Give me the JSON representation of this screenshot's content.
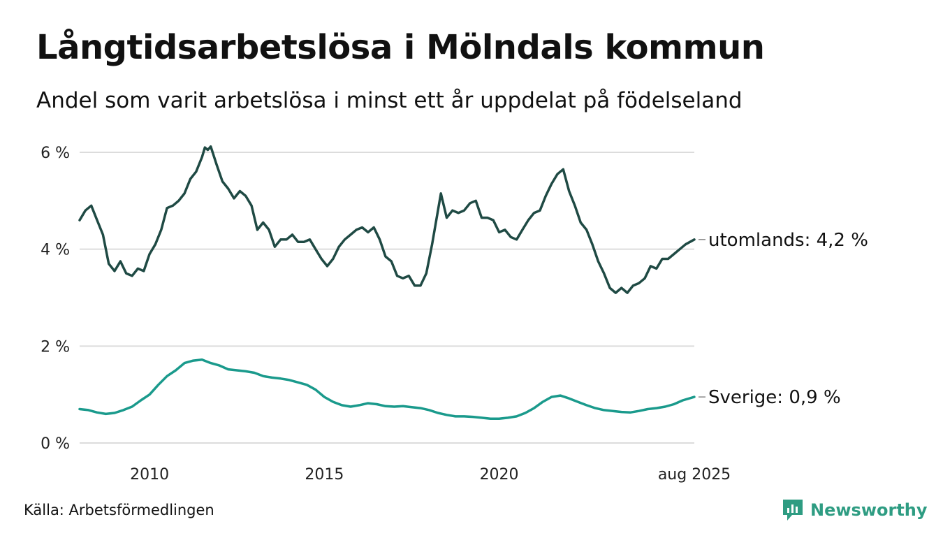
{
  "header": {
    "title": "Långtidsarbetslösa i Mölndals kommun",
    "subtitle": "Andel som varit arbetslösa i minst ett år uppdelat på födelseland"
  },
  "footer": {
    "source": "Källa: Arbetsförmedlingen",
    "brand": "Newsworthy",
    "brand_icon": "newsworthy-logo-icon"
  },
  "colors": {
    "utomlands": "#1f4a44",
    "sverige": "#1a9a8c",
    "grid": "#dcdcdc",
    "brand": "#2e9c82"
  },
  "chart_data": {
    "type": "line",
    "title": "Långtidsarbetslösa i Mölndals kommun",
    "subtitle": "Andel som varit arbetslösa i minst ett år uppdelat på födelseland",
    "xlabel": "",
    "ylabel": "",
    "xlim": [
      "2008-01",
      "2025-08"
    ],
    "ylim": [
      0,
      6
    ],
    "y_ticks": [
      {
        "value": 0,
        "label": "0 %"
      },
      {
        "value": 2,
        "label": "2 %"
      },
      {
        "value": 4,
        "label": "4 %"
      },
      {
        "value": 6,
        "label": "6 %"
      }
    ],
    "x_ticks": [
      {
        "value": "2010-01",
        "label": "2010"
      },
      {
        "value": "2015-01",
        "label": "2015"
      },
      {
        "value": "2020-01",
        "label": "2020"
      },
      {
        "value": "2025-08",
        "label": "aug 2025"
      }
    ],
    "grid": true,
    "legend": "direct labels at line ends",
    "series": [
      {
        "name": "utomlands",
        "end_label": "utomlands: 4,2 %",
        "points": [
          [
            "2008-01",
            4.6
          ],
          [
            "2008-03",
            4.8
          ],
          [
            "2008-05",
            4.9
          ],
          [
            "2008-07",
            4.6
          ],
          [
            "2008-09",
            4.3
          ],
          [
            "2008-11",
            3.7
          ],
          [
            "2009-01",
            3.55
          ],
          [
            "2009-03",
            3.75
          ],
          [
            "2009-05",
            3.5
          ],
          [
            "2009-07",
            3.45
          ],
          [
            "2009-09",
            3.6
          ],
          [
            "2009-11",
            3.55
          ],
          [
            "2010-01",
            3.9
          ],
          [
            "2010-03",
            4.1
          ],
          [
            "2010-05",
            4.4
          ],
          [
            "2010-07",
            4.85
          ],
          [
            "2010-09",
            4.9
          ],
          [
            "2010-11",
            5.0
          ],
          [
            "2011-01",
            5.15
          ],
          [
            "2011-03",
            5.45
          ],
          [
            "2011-05",
            5.6
          ],
          [
            "2011-07",
            5.9
          ],
          [
            "2011-08",
            6.1
          ],
          [
            "2011-09",
            6.05
          ],
          [
            "2011-10",
            6.12
          ],
          [
            "2011-12",
            5.75
          ],
          [
            "2012-02",
            5.4
          ],
          [
            "2012-04",
            5.25
          ],
          [
            "2012-06",
            5.05
          ],
          [
            "2012-08",
            5.2
          ],
          [
            "2012-10",
            5.1
          ],
          [
            "2012-12",
            4.9
          ],
          [
            "2013-02",
            4.4
          ],
          [
            "2013-04",
            4.55
          ],
          [
            "2013-06",
            4.4
          ],
          [
            "2013-08",
            4.05
          ],
          [
            "2013-10",
            4.2
          ],
          [
            "2013-12",
            4.2
          ],
          [
            "2014-02",
            4.3
          ],
          [
            "2014-04",
            4.15
          ],
          [
            "2014-06",
            4.15
          ],
          [
            "2014-08",
            4.2
          ],
          [
            "2014-10",
            4.0
          ],
          [
            "2014-12",
            3.8
          ],
          [
            "2015-02",
            3.65
          ],
          [
            "2015-04",
            3.8
          ],
          [
            "2015-06",
            4.05
          ],
          [
            "2015-08",
            4.2
          ],
          [
            "2015-10",
            4.3
          ],
          [
            "2015-12",
            4.4
          ],
          [
            "2016-02",
            4.45
          ],
          [
            "2016-04",
            4.35
          ],
          [
            "2016-06",
            4.45
          ],
          [
            "2016-08",
            4.2
          ],
          [
            "2016-10",
            3.85
          ],
          [
            "2016-12",
            3.75
          ],
          [
            "2017-02",
            3.45
          ],
          [
            "2017-04",
            3.4
          ],
          [
            "2017-06",
            3.45
          ],
          [
            "2017-08",
            3.25
          ],
          [
            "2017-10",
            3.25
          ],
          [
            "2017-12",
            3.5
          ],
          [
            "2018-02",
            4.1
          ],
          [
            "2018-04",
            4.8
          ],
          [
            "2018-05",
            5.15
          ],
          [
            "2018-07",
            4.65
          ],
          [
            "2018-09",
            4.8
          ],
          [
            "2018-11",
            4.75
          ],
          [
            "2019-01",
            4.8
          ],
          [
            "2019-03",
            4.95
          ],
          [
            "2019-05",
            5.0
          ],
          [
            "2019-07",
            4.65
          ],
          [
            "2019-09",
            4.65
          ],
          [
            "2019-11",
            4.6
          ],
          [
            "2020-01",
            4.35
          ],
          [
            "2020-03",
            4.4
          ],
          [
            "2020-05",
            4.25
          ],
          [
            "2020-07",
            4.2
          ],
          [
            "2020-09",
            4.4
          ],
          [
            "2020-11",
            4.6
          ],
          [
            "2021-01",
            4.75
          ],
          [
            "2021-03",
            4.8
          ],
          [
            "2021-05",
            5.1
          ],
          [
            "2021-07",
            5.35
          ],
          [
            "2021-09",
            5.55
          ],
          [
            "2021-11",
            5.65
          ],
          [
            "2022-01",
            5.2
          ],
          [
            "2022-03",
            4.9
          ],
          [
            "2022-05",
            4.55
          ],
          [
            "2022-07",
            4.4
          ],
          [
            "2022-09",
            4.1
          ],
          [
            "2022-11",
            3.75
          ],
          [
            "2023-01",
            3.5
          ],
          [
            "2023-03",
            3.2
          ],
          [
            "2023-05",
            3.1
          ],
          [
            "2023-07",
            3.2
          ],
          [
            "2023-09",
            3.1
          ],
          [
            "2023-11",
            3.25
          ],
          [
            "2024-01",
            3.3
          ],
          [
            "2024-03",
            3.4
          ],
          [
            "2024-05",
            3.65
          ],
          [
            "2024-07",
            3.6
          ],
          [
            "2024-09",
            3.8
          ],
          [
            "2024-11",
            3.8
          ],
          [
            "2025-01",
            3.9
          ],
          [
            "2025-03",
            4.0
          ],
          [
            "2025-05",
            4.1
          ],
          [
            "2025-08",
            4.2
          ]
        ]
      },
      {
        "name": "Sverige",
        "end_label": "Sverige: 0,9 %",
        "points": [
          [
            "2008-01",
            0.7
          ],
          [
            "2008-04",
            0.68
          ],
          [
            "2008-07",
            0.63
          ],
          [
            "2008-10",
            0.6
          ],
          [
            "2009-01",
            0.62
          ],
          [
            "2009-04",
            0.68
          ],
          [
            "2009-07",
            0.75
          ],
          [
            "2009-10",
            0.88
          ],
          [
            "2010-01",
            1.0
          ],
          [
            "2010-04",
            1.2
          ],
          [
            "2010-07",
            1.38
          ],
          [
            "2010-10",
            1.5
          ],
          [
            "2011-01",
            1.65
          ],
          [
            "2011-04",
            1.7
          ],
          [
            "2011-07",
            1.72
          ],
          [
            "2011-10",
            1.65
          ],
          [
            "2012-01",
            1.6
          ],
          [
            "2012-04",
            1.52
          ],
          [
            "2012-07",
            1.5
          ],
          [
            "2012-10",
            1.48
          ],
          [
            "2013-01",
            1.45
          ],
          [
            "2013-04",
            1.38
          ],
          [
            "2013-07",
            1.35
          ],
          [
            "2013-10",
            1.33
          ],
          [
            "2014-01",
            1.3
          ],
          [
            "2014-04",
            1.25
          ],
          [
            "2014-07",
            1.2
          ],
          [
            "2014-10",
            1.1
          ],
          [
            "2015-01",
            0.95
          ],
          [
            "2015-04",
            0.85
          ],
          [
            "2015-07",
            0.78
          ],
          [
            "2015-10",
            0.75
          ],
          [
            "2016-01",
            0.78
          ],
          [
            "2016-04",
            0.82
          ],
          [
            "2016-07",
            0.8
          ],
          [
            "2016-10",
            0.76
          ],
          [
            "2017-01",
            0.75
          ],
          [
            "2017-04",
            0.76
          ],
          [
            "2017-07",
            0.74
          ],
          [
            "2017-10",
            0.72
          ],
          [
            "2018-01",
            0.68
          ],
          [
            "2018-04",
            0.62
          ],
          [
            "2018-07",
            0.58
          ],
          [
            "2018-10",
            0.55
          ],
          [
            "2019-01",
            0.55
          ],
          [
            "2019-04",
            0.54
          ],
          [
            "2019-07",
            0.52
          ],
          [
            "2019-10",
            0.5
          ],
          [
            "2020-01",
            0.5
          ],
          [
            "2020-04",
            0.52
          ],
          [
            "2020-07",
            0.55
          ],
          [
            "2020-10",
            0.62
          ],
          [
            "2021-01",
            0.72
          ],
          [
            "2021-04",
            0.85
          ],
          [
            "2021-07",
            0.95
          ],
          [
            "2021-10",
            0.98
          ],
          [
            "2022-01",
            0.92
          ],
          [
            "2022-04",
            0.85
          ],
          [
            "2022-07",
            0.78
          ],
          [
            "2022-10",
            0.72
          ],
          [
            "2023-01",
            0.68
          ],
          [
            "2023-04",
            0.66
          ],
          [
            "2023-07",
            0.64
          ],
          [
            "2023-10",
            0.63
          ],
          [
            "2024-01",
            0.66
          ],
          [
            "2024-04",
            0.7
          ],
          [
            "2024-07",
            0.72
          ],
          [
            "2024-10",
            0.75
          ],
          [
            "2025-01",
            0.8
          ],
          [
            "2025-04",
            0.88
          ],
          [
            "2025-08",
            0.95
          ]
        ]
      }
    ]
  }
}
